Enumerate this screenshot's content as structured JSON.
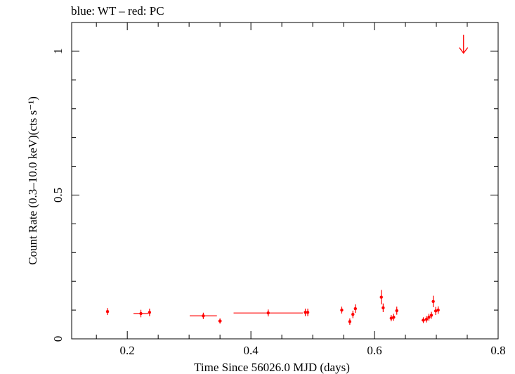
{
  "header": {
    "text": "blue: WT – red: PC"
  },
  "chart_data": {
    "type": "scatter",
    "title": "blue: WT – red: PC",
    "xlabel": "Time Since 56026.0 MJD (days)",
    "ylabel": "Count Rate (0.3–10.0 keV)(cts s⁻¹)",
    "xlim": [
      0.11,
      0.8
    ],
    "ylim": [
      0,
      1.1
    ],
    "x_ticks": [
      {
        "value": 0.2,
        "label": "0.2"
      },
      {
        "value": 0.4,
        "label": "0.4"
      },
      {
        "value": 0.6,
        "label": "0.6"
      },
      {
        "value": 0.8,
        "label": "0.8"
      }
    ],
    "y_ticks": [
      {
        "value": 0,
        "label": "0"
      },
      {
        "value": 0.5,
        "label": "0.5"
      },
      {
        "value": 1,
        "label": "1"
      }
    ],
    "series": [
      {
        "color": "#ff0000",
        "marker": "dot-with-errorbars",
        "points": [
          {
            "x": 0.168,
            "y": 0.095,
            "xerr": 0.002,
            "yerr": 0.012
          },
          {
            "x": 0.222,
            "y": 0.088,
            "xerr": 0.012,
            "yerr": 0.013
          },
          {
            "x": 0.236,
            "y": 0.092,
            "xerr": 0.002,
            "yerr": 0.013
          },
          {
            "x": 0.323,
            "y": 0.08,
            "xerr": 0.022,
            "yerr": 0.011
          },
          {
            "x": 0.35,
            "y": 0.062,
            "xerr": 0.003,
            "yerr": 0.009
          },
          {
            "x": 0.428,
            "y": 0.09,
            "xerr": 0.056,
            "yerr": 0.012
          },
          {
            "x": 0.488,
            "y": 0.092,
            "xerr": 0.002,
            "yerr": 0.013
          },
          {
            "x": 0.492,
            "y": 0.092,
            "xerr": 0.002,
            "yerr": 0.013
          },
          {
            "x": 0.547,
            "y": 0.1,
            "xerr": 0.002,
            "yerr": 0.012
          },
          {
            "x": 0.56,
            "y": 0.06,
            "xerr": 0.002,
            "yerr": 0.011
          },
          {
            "x": 0.565,
            "y": 0.085,
            "xerr": 0.002,
            "yerr": 0.013
          },
          {
            "x": 0.569,
            "y": 0.105,
            "xerr": 0.002,
            "yerr": 0.015
          },
          {
            "x": 0.611,
            "y": 0.145,
            "xerr": 0.002,
            "yerr": 0.025
          },
          {
            "x": 0.614,
            "y": 0.108,
            "xerr": 0.002,
            "yerr": 0.015
          },
          {
            "x": 0.627,
            "y": 0.072,
            "xerr": 0.002,
            "yerr": 0.011
          },
          {
            "x": 0.631,
            "y": 0.075,
            "xerr": 0.002,
            "yerr": 0.012
          },
          {
            "x": 0.636,
            "y": 0.098,
            "xerr": 0.002,
            "yerr": 0.014
          },
          {
            "x": 0.679,
            "y": 0.065,
            "xerr": 0.003,
            "yerr": 0.01
          },
          {
            "x": 0.684,
            "y": 0.068,
            "xerr": 0.002,
            "yerr": 0.011
          },
          {
            "x": 0.688,
            "y": 0.075,
            "xerr": 0.002,
            "yerr": 0.012
          },
          {
            "x": 0.692,
            "y": 0.082,
            "xerr": 0.002,
            "yerr": 0.012
          },
          {
            "x": 0.695,
            "y": 0.13,
            "xerr": 0.002,
            "yerr": 0.02
          },
          {
            "x": 0.699,
            "y": 0.097,
            "xerr": 0.002,
            "yerr": 0.014
          },
          {
            "x": 0.703,
            "y": 0.1,
            "xerr": 0.002,
            "yerr": 0.013
          }
        ],
        "upper_limits": [
          {
            "x": 0.744,
            "y": 1.03
          }
        ]
      }
    ]
  }
}
